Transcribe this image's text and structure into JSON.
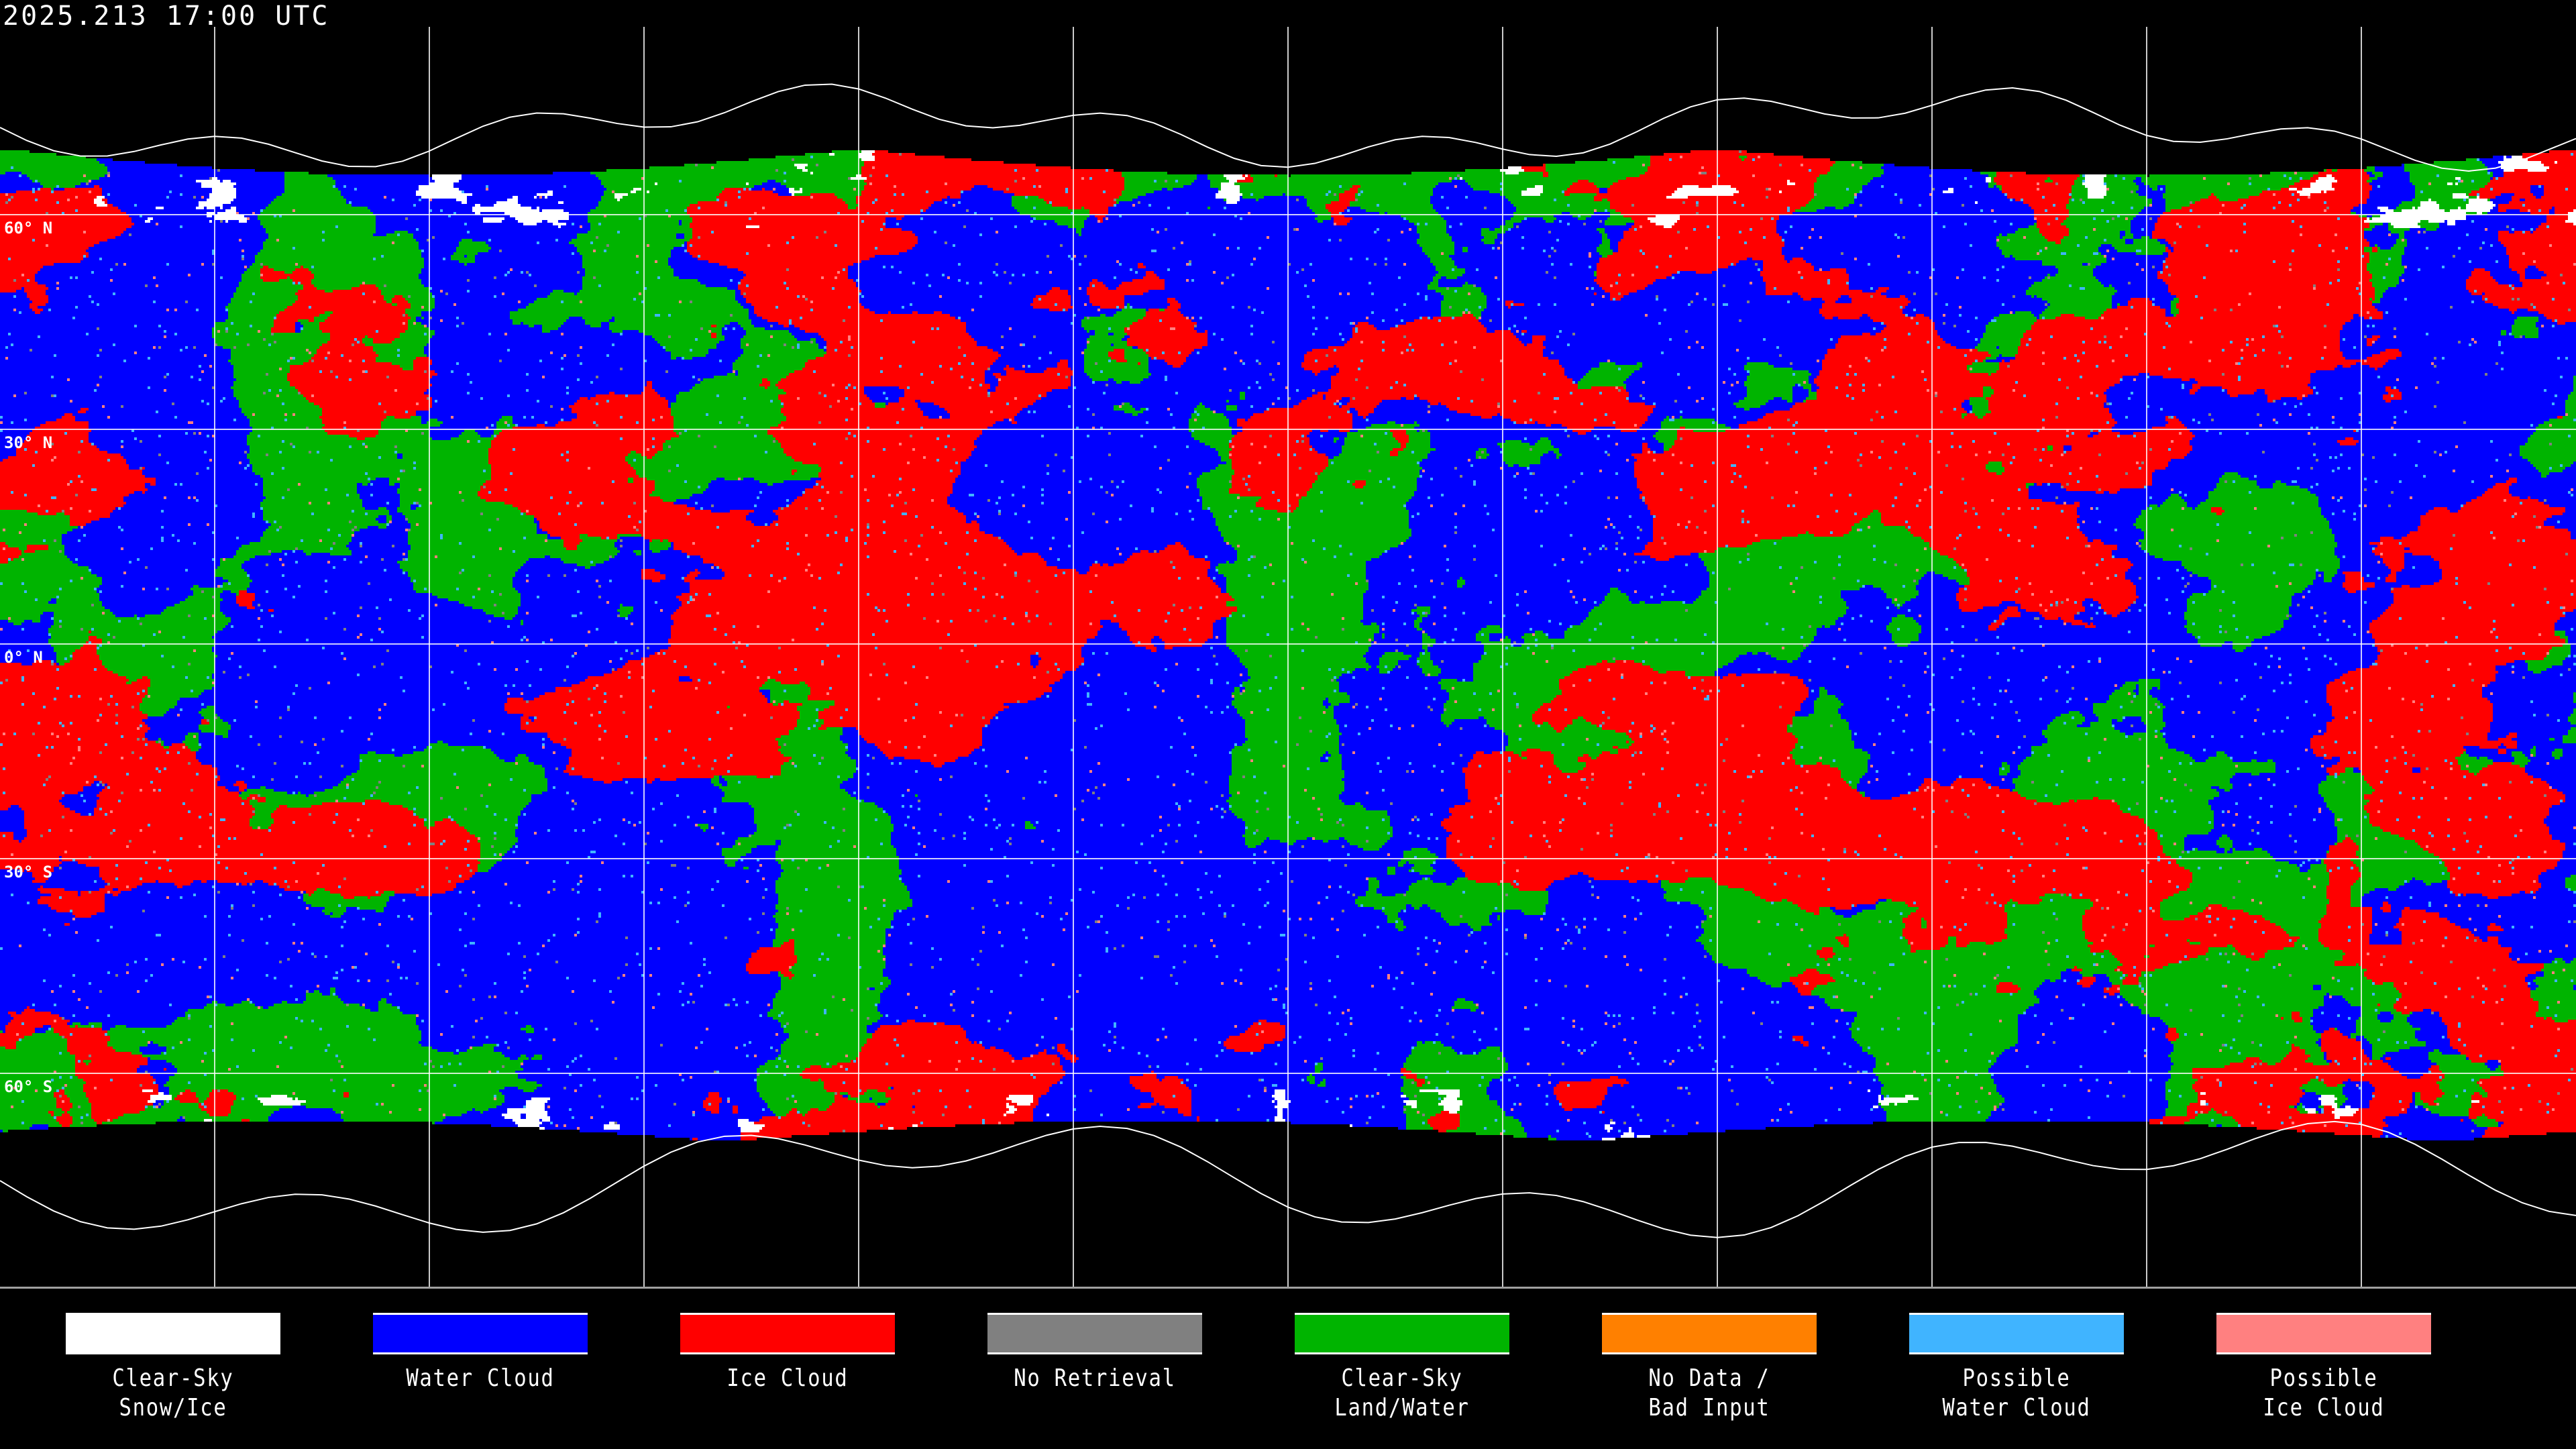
{
  "header": {
    "timestamp": "2025.213 17:00 UTC"
  },
  "map": {
    "projection": "equirectangular",
    "grid_lon_step_deg": 30,
    "latitude_labels": [
      "60° N",
      "30° N",
      "0° N",
      "30° S",
      "60° S"
    ]
  },
  "legend": [
    {
      "label": "Clear-Sky\nSnow/Ice",
      "color": "#ffffff"
    },
    {
      "label": "Water Cloud",
      "color": "#0000ff"
    },
    {
      "label": "Ice Cloud",
      "color": "#ff0000"
    },
    {
      "label": "No Retrieval",
      "color": "#808080"
    },
    {
      "label": "Clear-Sky\nLand/Water",
      "color": "#00b400"
    },
    {
      "label": "No Data /\nBad Input",
      "color": "#ff8000"
    },
    {
      "label": "Possible\nWater Cloud",
      "color": "#40b4ff"
    },
    {
      "label": "Possible\nIce Cloud",
      "color": "#ff8080"
    }
  ]
}
